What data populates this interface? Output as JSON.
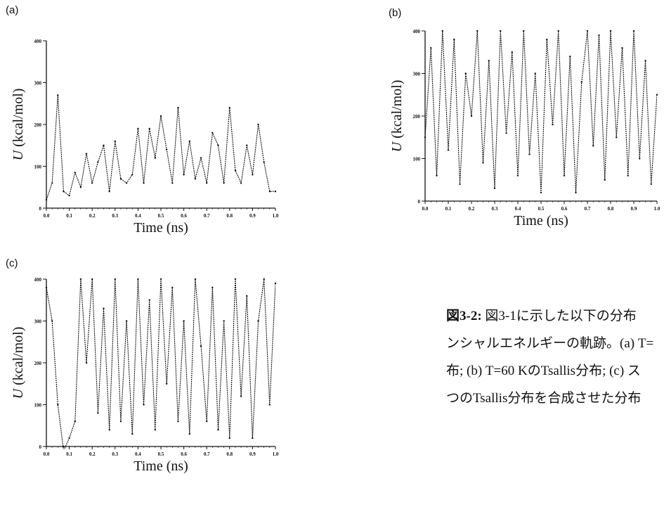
{
  "panels": [
    {
      "letter": "(a)",
      "chart_data": {
        "type": "line",
        "ylabel_var": "U",
        "ylabel_unit": "(kcal/mol)",
        "xlabel": "Time (ns)",
        "xlim": [
          0,
          1.0
        ],
        "ylim": [
          0,
          400
        ],
        "xticks": [
          "0.0",
          "0.1",
          "0.2",
          "0.3",
          "0.4",
          "0.5",
          "0.6",
          "0.7",
          "0.8",
          "0.9",
          "1.0"
        ],
        "yticks": [
          "0",
          "100",
          "200",
          "300",
          "400"
        ],
        "series": [
          {
            "x": [
              0.0,
              0.025,
              0.05,
              0.075,
              0.1,
              0.125,
              0.15,
              0.175,
              0.2,
              0.225,
              0.25,
              0.275,
              0.3,
              0.325,
              0.35,
              0.375,
              0.4,
              0.425,
              0.45,
              0.475,
              0.5,
              0.525,
              0.55,
              0.575,
              0.6,
              0.625,
              0.65,
              0.675,
              0.7,
              0.725,
              0.75,
              0.775,
              0.8,
              0.825,
              0.85,
              0.875,
              0.9,
              0.925,
              0.95,
              0.975,
              1.0
            ],
            "values": [
              20,
              60,
              270,
              40,
              30,
              85,
              50,
              130,
              60,
              110,
              150,
              40,
              160,
              70,
              60,
              80,
              190,
              60,
              190,
              120,
              220,
              140,
              60,
              240,
              80,
              160,
              70,
              120,
              60,
              180,
              150,
              60,
              240,
              90,
              60,
              150,
              80,
              200,
              110,
              40,
              40
            ]
          }
        ]
      }
    },
    {
      "letter": "(b)",
      "chart_data": {
        "type": "line",
        "ylabel_var": "U",
        "ylabel_unit": "(kcal/mol)",
        "xlabel": "Time (ns)",
        "xlim": [
          0,
          1.0
        ],
        "ylim": [
          0,
          400
        ],
        "xticks": [
          "0.0",
          "0.1",
          "0.2",
          "0.3",
          "0.4",
          "0.5",
          "0.6",
          "0.7",
          "0.8",
          "0.9",
          "1.0"
        ],
        "yticks": [
          "0",
          "100",
          "200",
          "300",
          "400"
        ],
        "series": [
          {
            "x": [
              0.0,
              0.025,
              0.05,
              0.075,
              0.1,
              0.125,
              0.15,
              0.175,
              0.2,
              0.225,
              0.25,
              0.275,
              0.3,
              0.325,
              0.35,
              0.375,
              0.4,
              0.425,
              0.45,
              0.475,
              0.5,
              0.525,
              0.55,
              0.575,
              0.6,
              0.625,
              0.65,
              0.675,
              0.7,
              0.725,
              0.75,
              0.775,
              0.8,
              0.825,
              0.85,
              0.875,
              0.9,
              0.925,
              0.95,
              0.975,
              1.0
            ],
            "values": [
              150,
              360,
              60,
              400,
              120,
              380,
              40,
              300,
              200,
              400,
              90,
              330,
              30,
              400,
              160,
              350,
              60,
              400,
              110,
              300,
              20,
              380,
              180,
              400,
              60,
              340,
              20,
              280,
              400,
              130,
              390,
              50,
              400,
              150,
              360,
              60,
              400,
              100,
              330,
              40,
              250
            ]
          }
        ]
      }
    },
    {
      "letter": "(c)",
      "chart_data": {
        "type": "line",
        "ylabel_var": "U",
        "ylabel_unit": "(kcal/mol)",
        "xlabel": "Time (ns)",
        "xlim": [
          0,
          1.0
        ],
        "ylim": [
          0,
          400
        ],
        "xticks": [
          "0.0",
          "0.1",
          "0.2",
          "0.3",
          "0.4",
          "0.5",
          "0.6",
          "0.7",
          "0.8",
          "0.9",
          "1.0"
        ],
        "yticks": [
          "0",
          "100",
          "200",
          "300",
          "400"
        ],
        "series": [
          {
            "x": [
              0.0,
              0.025,
              0.05,
              0.075,
              0.1,
              0.125,
              0.15,
              0.175,
              0.2,
              0.225,
              0.25,
              0.275,
              0.3,
              0.325,
              0.35,
              0.375,
              0.4,
              0.425,
              0.45,
              0.475,
              0.5,
              0.525,
              0.55,
              0.575,
              0.6,
              0.625,
              0.65,
              0.675,
              0.7,
              0.725,
              0.75,
              0.775,
              0.8,
              0.825,
              0.85,
              0.875,
              0.9,
              0.925,
              0.95,
              0.975,
              1.0
            ],
            "values": [
              380,
              300,
              100,
              -10,
              20,
              60,
              400,
              200,
              400,
              80,
              330,
              40,
              400,
              60,
              300,
              30,
              400,
              100,
              350,
              40,
              400,
              150,
              380,
              60,
              300,
              30,
              400,
              240,
              60,
              380,
              40,
              300,
              20,
              400,
              120,
              360,
              20,
              300,
              400,
              100,
              390
            ]
          }
        ]
      }
    }
  ],
  "caption": {
    "lines": [
      {
        "label": "図3-2:",
        "text": " 図3-1に示した以下の分布"
      },
      {
        "label": "",
        "text": "ンシャルエネルギーの軌跡。(a) T="
      },
      {
        "label": "",
        "text": "布; (b) T=60 KのTsallis分布; (c) ス"
      },
      {
        "label": "",
        "text": "つのTsallis分布を合成させた分布"
      }
    ]
  }
}
